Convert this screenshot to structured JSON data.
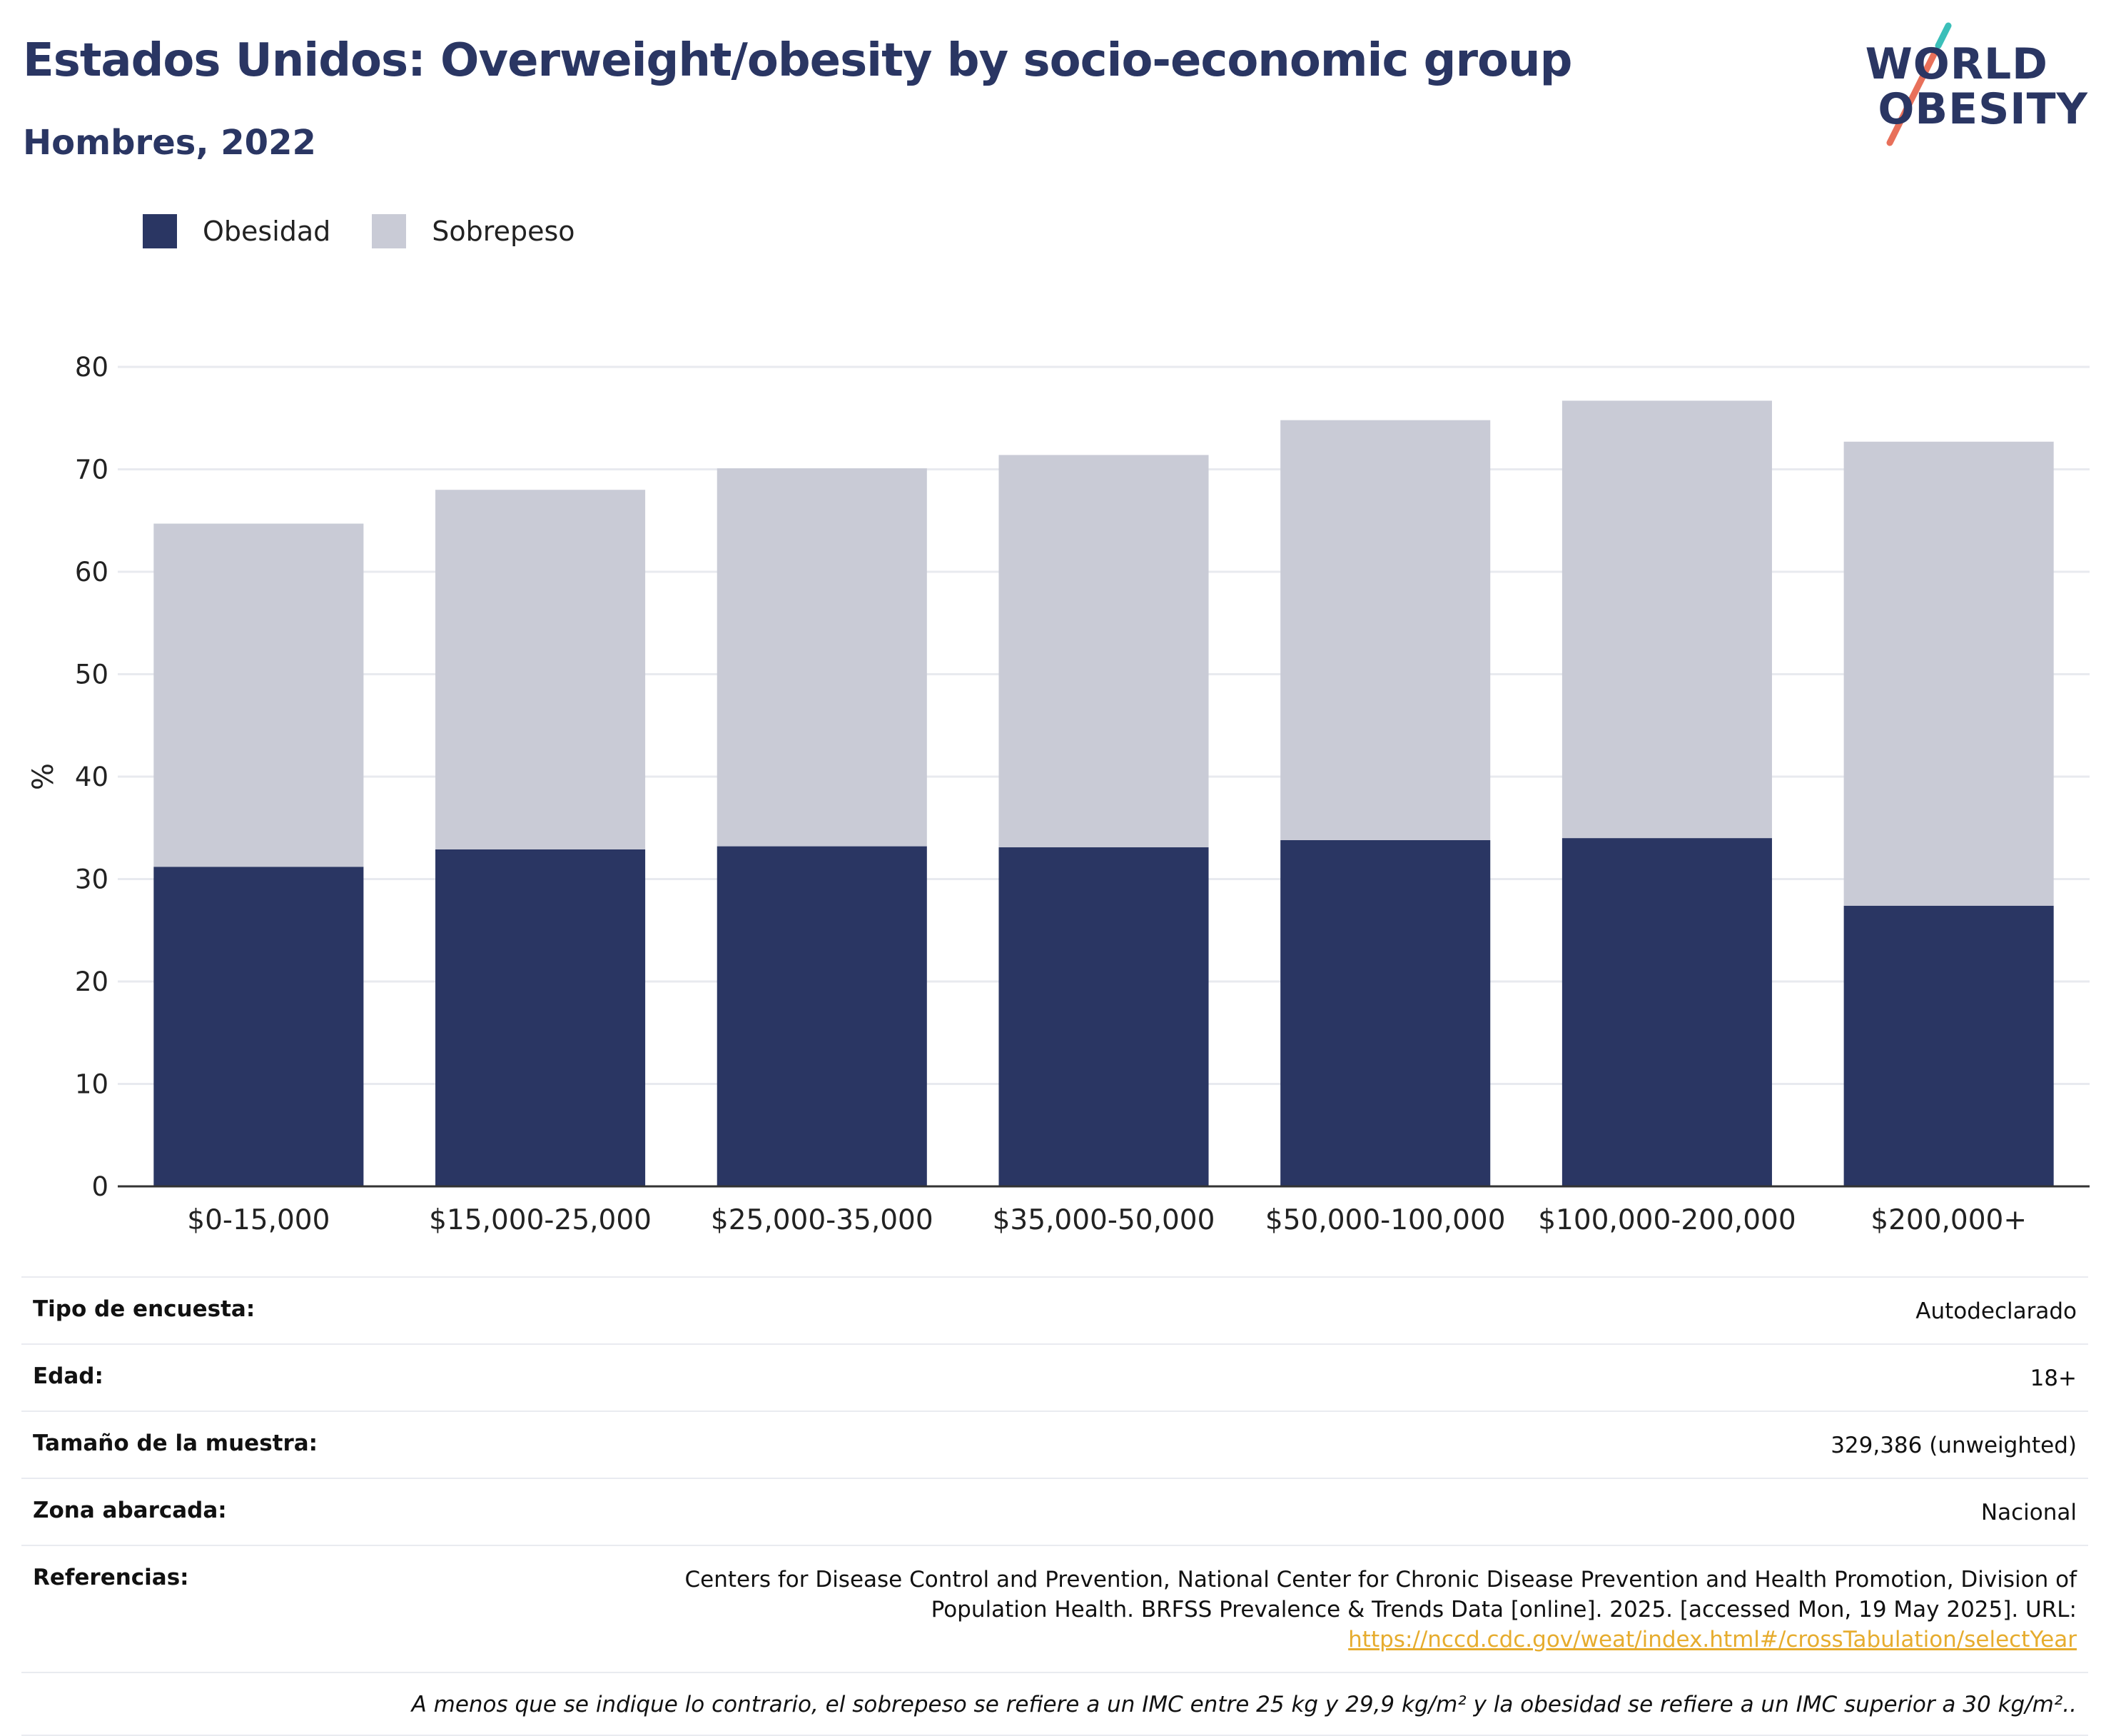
{
  "header": {
    "title": "Estados Unidos: Overweight/obesity by socio-economic group",
    "subtitle": "Hombres, 2022"
  },
  "logo": {
    "line1": "WORLD",
    "line2": "OBESITY",
    "colors": {
      "text": "#2a3663",
      "slash_top": "#3bbfb9",
      "slash_bottom": "#e8705a"
    }
  },
  "colors": {
    "obesity": "#2a3663",
    "overweight": "#c9cbd6",
    "grid": "#e8eaef",
    "axis": "#333333"
  },
  "chart_data": {
    "type": "bar",
    "stacked": true,
    "categories": [
      "$0-15,000",
      "$15,000-25,000",
      "$25,000-35,000",
      "$35,000-50,000",
      "$50,000-100,000",
      "$100,000-200,000",
      "$200,000+"
    ],
    "series": [
      {
        "name": "Obesidad",
        "color": "#2a3663",
        "values": [
          31.2,
          32.9,
          33.2,
          33.1,
          33.8,
          34.0,
          27.4
        ]
      },
      {
        "name": "Sobrepeso",
        "color": "#c9cbd6",
        "values": [
          33.5,
          35.1,
          36.9,
          38.3,
          41.0,
          42.7,
          45.3
        ]
      }
    ],
    "title": "",
    "xlabel": "",
    "ylabel": "%",
    "ylim": [
      0,
      80
    ],
    "yticks": [
      0,
      10,
      20,
      30,
      40,
      50,
      60,
      70,
      80
    ],
    "grid": true,
    "legend_position": "top-left"
  },
  "info": {
    "rows": [
      {
        "label": "Tipo de encuesta:",
        "value": "Autodeclarado"
      },
      {
        "label": "Edad:",
        "value": "18+"
      },
      {
        "label": "Tamaño de la muestra:",
        "value": "329,386 (unweighted)"
      },
      {
        "label": "Zona abarcada:",
        "value": "Nacional"
      }
    ],
    "references": {
      "label": "Referencias:",
      "line1": "Centers for Disease Control and Prevention, National Center for Chronic Disease Prevention and Health Promotion, Division of",
      "line2": "Population Health. BRFSS Prevalence & Trends Data [online]. 2025. [accessed Mon, 19 May 2025]. URL:",
      "link": "https://nccd.cdc.gov/weat/index.html#/crossTabulation/selectYear"
    },
    "note": "A menos que se indique lo contrario, el sobrepeso se refiere a un IMC entre 25 kg y 29,9 kg/m² y la obesidad se refiere a un IMC superior a 30 kg/m².."
  }
}
